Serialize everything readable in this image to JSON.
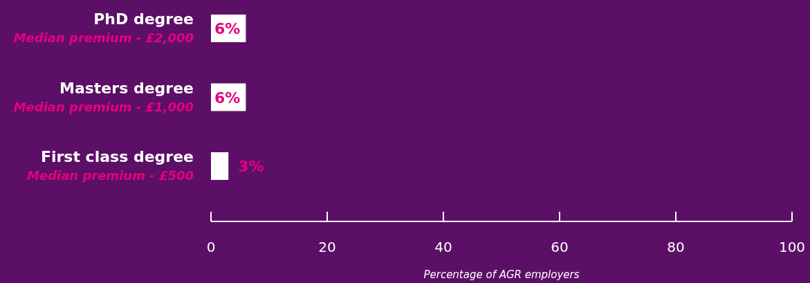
{
  "chart_data": {
    "type": "bar",
    "orientation": "horizontal",
    "xlabel": "Percentage of AGR employers",
    "categories": [
      "PhD degree\nMedian premium - £2,000",
      "Masters degree\nMedian premium - £1,000",
      "First class degree\nMedian premium - £500"
    ],
    "values": [
      6,
      6,
      3
    ],
    "color": "#ffffff",
    "value_labels": [
      "6%",
      "6%",
      "3%"
    ],
    "xlim": [
      0,
      100
    ],
    "xticks": [
      0,
      20,
      40,
      60,
      80,
      100
    ],
    "grid": false
  }
}
